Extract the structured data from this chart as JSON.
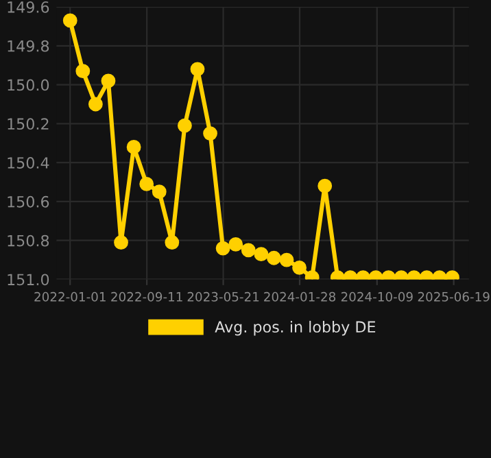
{
  "chart_data": {
    "type": "line",
    "x": [
      "2022-01-01",
      "2022-02-12",
      "2022-03-26",
      "2022-05-07",
      "2022-06-18",
      "2022-07-30",
      "2022-09-10",
      "2022-10-22",
      "2022-12-03",
      "2023-01-14",
      "2023-02-25",
      "2023-04-08",
      "2023-05-20",
      "2023-07-01",
      "2023-08-12",
      "2023-09-23",
      "2023-11-04",
      "2023-12-16",
      "2024-01-27",
      "2024-03-09",
      "2024-04-20",
      "2024-06-01",
      "2024-07-13",
      "2024-08-24",
      "2024-10-05",
      "2024-11-16",
      "2024-12-28",
      "2025-02-08",
      "2025-03-22",
      "2025-05-03",
      "2025-06-14"
    ],
    "series": [
      {
        "name": "Avg. pos. in lobby DE",
        "color": "#ffd000",
        "values": [
          149.67,
          149.93,
          150.1,
          149.98,
          150.81,
          150.32,
          150.51,
          150.55,
          150.81,
          150.21,
          149.92,
          150.25,
          150.84,
          150.82,
          150.85,
          150.87,
          150.89,
          150.9,
          150.94,
          150.99,
          150.52,
          150.99,
          150.99,
          150.99,
          150.99,
          150.99,
          150.99,
          150.99,
          150.99,
          150.99,
          150.99
        ]
      }
    ],
    "ylim": [
      151.0,
      149.6
    ],
    "yticks": [
      {
        "value": 149.6,
        "label": "149.6"
      },
      {
        "value": 149.8,
        "label": "149.8"
      },
      {
        "value": 150.0,
        "label": "150.0"
      },
      {
        "value": 150.2,
        "label": "150.2"
      },
      {
        "value": 150.4,
        "label": "150.4"
      },
      {
        "value": 150.6,
        "label": "150.6"
      },
      {
        "value": 150.8,
        "label": "150.8"
      },
      {
        "value": 151.0,
        "label": "151.0"
      }
    ],
    "xlim": [
      "2021-11-17",
      "2025-08-08"
    ],
    "xticks": [
      "2022-01-01",
      "2022-09-11",
      "2023-05-21",
      "2024-01-28",
      "2024-10-09",
      "2025-06-19"
    ],
    "grid": true,
    "legend": "bottom",
    "marker": "circle",
    "line_style": "solid"
  }
}
